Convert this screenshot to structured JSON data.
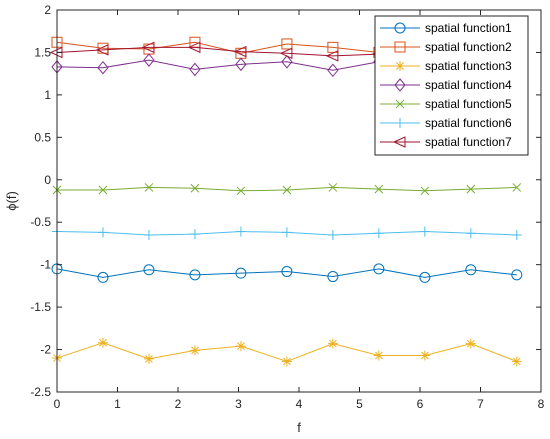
{
  "chart_data": {
    "type": "line",
    "title": "",
    "xlabel": "f",
    "ylabel": "ϕ(f)",
    "xlim": [
      0,
      8
    ],
    "ylim": [
      -2.5,
      2
    ],
    "xticks": [
      0,
      1,
      2,
      3,
      4,
      5,
      6,
      7,
      8
    ],
    "yticks": [
      2,
      1.5,
      1,
      0.5,
      0,
      -0.5,
      -1,
      -1.5,
      -2,
      -2.5
    ],
    "xtick_labels": [
      "0",
      "1",
      "2",
      "3",
      "4",
      "5",
      "6",
      "7",
      "8"
    ],
    "ytick_labels": [
      "2",
      "1.5",
      "1",
      "0.5",
      "0",
      "-0.5",
      "-1",
      "-1.5",
      "-2",
      "-2.5"
    ],
    "grid": false,
    "legend_position": "top-right",
    "x": [
      0,
      0.76,
      1.52,
      2.28,
      3.04,
      3.8,
      4.56,
      5.32,
      6.08,
      6.84,
      7.6
    ],
    "series": [
      {
        "name": "spatial function1",
        "color": "#0072BD",
        "marker": "circle",
        "values": [
          -1.05,
          -1.15,
          -1.06,
          -1.12,
          -1.1,
          -1.08,
          -1.14,
          -1.05,
          -1.15,
          -1.06,
          -1.12
        ]
      },
      {
        "name": "spatial function2",
        "color": "#D95319",
        "marker": "square",
        "values": [
          1.62,
          1.55,
          1.54,
          1.62,
          1.49,
          1.6,
          1.56,
          1.5,
          1.52,
          1.56,
          1.52
        ]
      },
      {
        "name": "spatial function3",
        "color": "#EDB120",
        "marker": "asterisk",
        "values": [
          -2.1,
          -1.92,
          -2.11,
          -2.01,
          -1.96,
          -2.14,
          -1.93,
          -2.07,
          -2.07,
          -1.93,
          -2.14
        ]
      },
      {
        "name": "spatial function4",
        "color": "#7E2F8E",
        "marker": "diamond",
        "values": [
          1.33,
          1.32,
          1.41,
          1.3,
          1.36,
          1.39,
          1.29,
          1.39,
          1.35,
          1.36,
          1.33
        ]
      },
      {
        "name": "spatial function5",
        "color": "#77AC30",
        "marker": "x",
        "values": [
          -0.12,
          -0.12,
          -0.09,
          -0.1,
          -0.13,
          -0.12,
          -0.09,
          -0.11,
          -0.13,
          -0.11,
          -0.09
        ]
      },
      {
        "name": "spatial function6",
        "color": "#4DBEEE",
        "marker": "plus",
        "values": [
          -0.61,
          -0.62,
          -0.65,
          -0.64,
          -0.61,
          -0.62,
          -0.65,
          -0.63,
          -0.61,
          -0.63,
          -0.65
        ]
      },
      {
        "name": "spatial function7",
        "color": "#A2142F",
        "marker": "triangle-left",
        "values": [
          1.5,
          1.53,
          1.56,
          1.56,
          1.51,
          1.49,
          1.46,
          1.48,
          1.47,
          1.49,
          1.48
        ]
      }
    ]
  }
}
